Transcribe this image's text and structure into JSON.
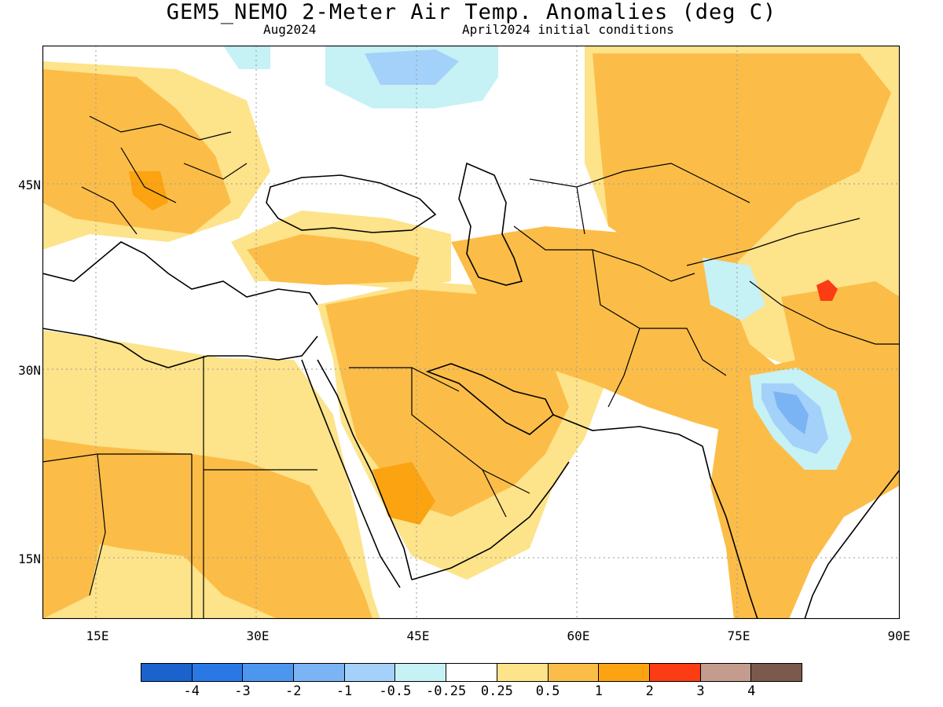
{
  "title": "GEM5_NEMO 2-Meter Air Temp. Anomalies (deg C)",
  "subtitle_left": "Aug2024",
  "subtitle_right": "April2024 initial conditions",
  "lat_labels": [
    "45N",
    "30N",
    "15N"
  ],
  "lon_labels": [
    "15E",
    "30E",
    "45E",
    "60E",
    "75E",
    "90E"
  ],
  "colorbar": {
    "colors": [
      "#1a63cf",
      "#2a78e6",
      "#4d96f0",
      "#7ab4f5",
      "#a4d1fa",
      "#c6f1f5",
      "#ffffff",
      "#fde38a",
      "#fbbd48",
      "#fba310",
      "#fc3c12",
      "#c39c8e",
      "#7a5a4c"
    ],
    "labels": [
      "-4",
      "-3",
      "-2",
      "-1",
      "-0.5",
      "-0.25",
      "0.25",
      "0.5",
      "1",
      "2",
      "3",
      "4"
    ]
  },
  "fill_colors": {
    "light_orange": "#fde38a",
    "orange": "#fbbd48",
    "dark_orange": "#fba310",
    "red": "#fc3c12",
    "cyan": "#c6f1f5",
    "light_blue": "#a4d1fa",
    "blue": "#7ab4f5"
  }
}
